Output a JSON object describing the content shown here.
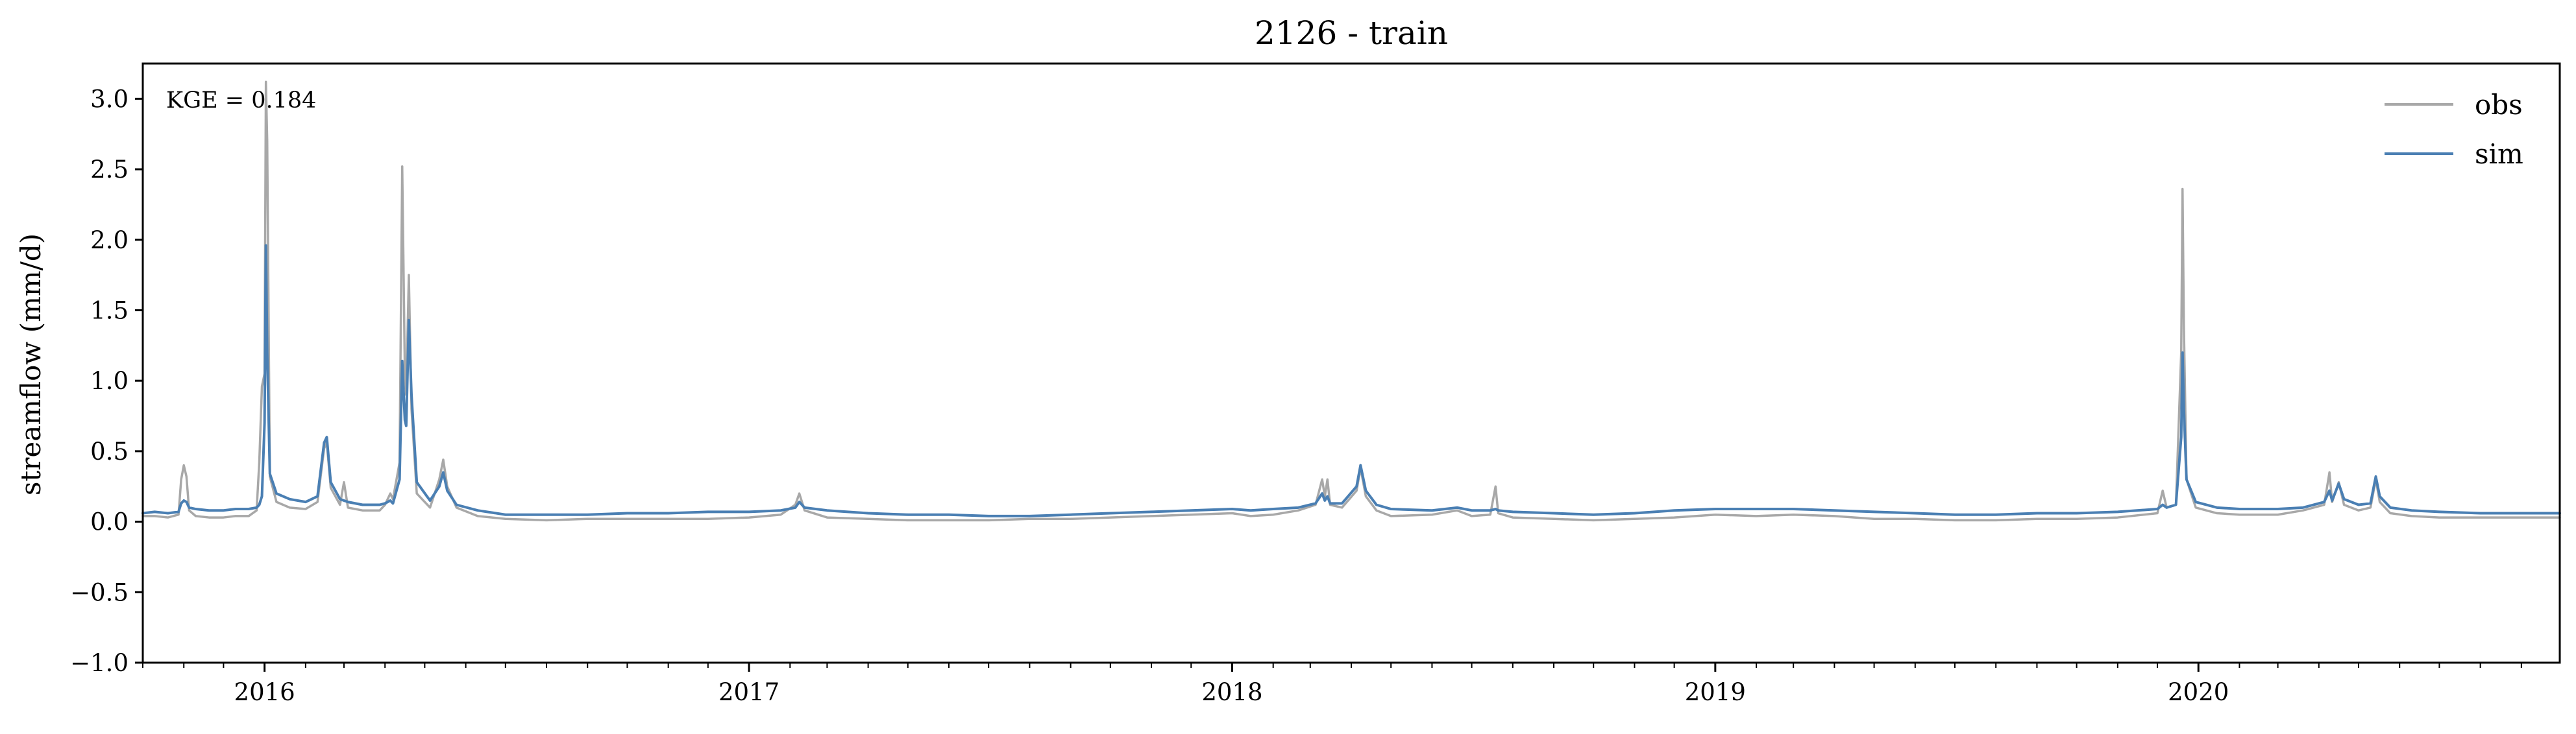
{
  "chart_data": {
    "type": "line",
    "title": "2126 - train",
    "xlabel": "",
    "ylabel": "streamflow (mm/d)",
    "annotation": "KGE = 0.184",
    "xlim": [
      "2015-10-01",
      "2020-09-30"
    ],
    "ylim": [
      -1.0,
      3.25
    ],
    "x_ticks": [
      "2016",
      "2017",
      "2018",
      "2019",
      "2020"
    ],
    "y_ticks": [
      "3.0",
      "2.5",
      "2.0",
      "1.5",
      "1.0",
      "0.5",
      "0.0",
      "−0.5",
      "−1.0"
    ],
    "legend_position": "top-right",
    "colors": {
      "obs": "#a8a8a8",
      "sim": "#4a7fb3"
    },
    "series": [
      {
        "name": "obs",
        "color": "#a8a8a8",
        "points": [
          [
            "2015-10-01",
            0.04
          ],
          [
            "2015-10-10",
            0.04
          ],
          [
            "2015-10-20",
            0.03
          ],
          [
            "2015-10-28",
            0.05
          ],
          [
            "2015-10-30",
            0.3
          ],
          [
            "2015-11-01",
            0.4
          ],
          [
            "2015-11-03",
            0.32
          ],
          [
            "2015-11-05",
            0.08
          ],
          [
            "2015-11-10",
            0.04
          ],
          [
            "2015-11-20",
            0.03
          ],
          [
            "2015-12-01",
            0.03
          ],
          [
            "2015-12-10",
            0.04
          ],
          [
            "2015-12-20",
            0.04
          ],
          [
            "2015-12-26",
            0.08
          ],
          [
            "2015-12-28",
            0.42
          ],
          [
            "2015-12-30",
            0.96
          ],
          [
            "2016-01-01",
            1.05
          ],
          [
            "2016-01-02",
            3.12
          ],
          [
            "2016-01-03",
            2.7
          ],
          [
            "2016-01-05",
            0.32
          ],
          [
            "2016-01-10",
            0.14
          ],
          [
            "2016-01-20",
            0.1
          ],
          [
            "2016-02-01",
            0.09
          ],
          [
            "2016-02-10",
            0.14
          ],
          [
            "2016-02-15",
            0.52
          ],
          [
            "2016-02-17",
            0.56
          ],
          [
            "2016-02-20",
            0.24
          ],
          [
            "2016-02-27",
            0.12
          ],
          [
            "2016-03-01",
            0.28
          ],
          [
            "2016-03-04",
            0.1
          ],
          [
            "2016-03-15",
            0.08
          ],
          [
            "2016-03-28",
            0.08
          ],
          [
            "2016-04-01",
            0.12
          ],
          [
            "2016-04-05",
            0.2
          ],
          [
            "2016-04-07",
            0.16
          ],
          [
            "2016-04-12",
            0.42
          ],
          [
            "2016-04-14",
            2.52
          ],
          [
            "2016-04-16",
            1.05
          ],
          [
            "2016-04-17",
            0.9
          ],
          [
            "2016-04-19",
            1.75
          ],
          [
            "2016-04-21",
            0.8
          ],
          [
            "2016-04-25",
            0.2
          ],
          [
            "2016-05-05",
            0.1
          ],
          [
            "2016-05-12",
            0.3
          ],
          [
            "2016-05-15",
            0.44
          ],
          [
            "2016-05-18",
            0.25
          ],
          [
            "2016-05-25",
            0.1
          ],
          [
            "2016-06-10",
            0.04
          ],
          [
            "2016-07-01",
            0.02
          ],
          [
            "2016-08-01",
            0.01
          ],
          [
            "2016-09-01",
            0.02
          ],
          [
            "2016-10-01",
            0.02
          ],
          [
            "2016-11-01",
            0.02
          ],
          [
            "2016-12-01",
            0.02
          ],
          [
            "2017-01-01",
            0.03
          ],
          [
            "2017-01-25",
            0.05
          ],
          [
            "2017-02-05",
            0.12
          ],
          [
            "2017-02-08",
            0.2
          ],
          [
            "2017-02-12",
            0.08
          ],
          [
            "2017-03-01",
            0.03
          ],
          [
            "2017-04-01",
            0.02
          ],
          [
            "2017-05-01",
            0.01
          ],
          [
            "2017-06-01",
            0.01
          ],
          [
            "2017-07-01",
            0.01
          ],
          [
            "2017-08-01",
            0.02
          ],
          [
            "2017-09-01",
            0.02
          ],
          [
            "2017-10-01",
            0.03
          ],
          [
            "2017-11-01",
            0.04
          ],
          [
            "2017-12-01",
            0.05
          ],
          [
            "2018-01-01",
            0.06
          ],
          [
            "2018-01-15",
            0.04
          ],
          [
            "2018-02-01",
            0.05
          ],
          [
            "2018-02-20",
            0.08
          ],
          [
            "2018-03-05",
            0.12
          ],
          [
            "2018-03-10",
            0.3
          ],
          [
            "2018-03-12",
            0.18
          ],
          [
            "2018-03-14",
            0.3
          ],
          [
            "2018-03-16",
            0.12
          ],
          [
            "2018-03-25",
            0.1
          ],
          [
            "2018-04-05",
            0.22
          ],
          [
            "2018-04-08",
            0.38
          ],
          [
            "2018-04-12",
            0.18
          ],
          [
            "2018-04-20",
            0.08
          ],
          [
            "2018-05-01",
            0.04
          ],
          [
            "2018-06-01",
            0.05
          ],
          [
            "2018-06-20",
            0.08
          ],
          [
            "2018-07-01",
            0.04
          ],
          [
            "2018-07-15",
            0.05
          ],
          [
            "2018-07-19",
            0.25
          ],
          [
            "2018-07-21",
            0.06
          ],
          [
            "2018-08-01",
            0.03
          ],
          [
            "2018-09-01",
            0.02
          ],
          [
            "2018-10-01",
            0.01
          ],
          [
            "2018-11-01",
            0.02
          ],
          [
            "2018-12-01",
            0.03
          ],
          [
            "2019-01-01",
            0.05
          ],
          [
            "2019-02-01",
            0.04
          ],
          [
            "2019-03-01",
            0.05
          ],
          [
            "2019-04-01",
            0.04
          ],
          [
            "2019-05-01",
            0.02
          ],
          [
            "2019-06-01",
            0.02
          ],
          [
            "2019-07-01",
            0.01
          ],
          [
            "2019-08-01",
            0.01
          ],
          [
            "2019-09-01",
            0.02
          ],
          [
            "2019-10-01",
            0.02
          ],
          [
            "2019-11-01",
            0.03
          ],
          [
            "2019-12-01",
            0.06
          ],
          [
            "2019-12-05",
            0.22
          ],
          [
            "2019-12-08",
            0.1
          ],
          [
            "2019-12-15",
            0.12
          ],
          [
            "2019-12-19",
            1.2
          ],
          [
            "2019-12-20",
            2.36
          ],
          [
            "2019-12-21",
            1.4
          ],
          [
            "2019-12-23",
            0.3
          ],
          [
            "2019-12-30",
            0.1
          ],
          [
            "2020-01-15",
            0.06
          ],
          [
            "2020-02-01",
            0.05
          ],
          [
            "2020-03-01",
            0.05
          ],
          [
            "2020-03-20",
            0.08
          ],
          [
            "2020-04-05",
            0.12
          ],
          [
            "2020-04-09",
            0.35
          ],
          [
            "2020-04-11",
            0.14
          ],
          [
            "2020-04-16",
            0.28
          ],
          [
            "2020-04-20",
            0.12
          ],
          [
            "2020-05-01",
            0.08
          ],
          [
            "2020-05-10",
            0.1
          ],
          [
            "2020-05-14",
            0.3
          ],
          [
            "2020-05-17",
            0.14
          ],
          [
            "2020-05-25",
            0.06
          ],
          [
            "2020-06-10",
            0.04
          ],
          [
            "2020-07-01",
            0.03
          ],
          [
            "2020-08-01",
            0.03
          ],
          [
            "2020-09-01",
            0.03
          ],
          [
            "2020-09-30",
            0.03
          ]
        ]
      },
      {
        "name": "sim",
        "color": "#4a7fb3",
        "points": [
          [
            "2015-10-01",
            0.06
          ],
          [
            "2015-10-10",
            0.07
          ],
          [
            "2015-10-20",
            0.06
          ],
          [
            "2015-10-28",
            0.07
          ],
          [
            "2015-10-30",
            0.13
          ],
          [
            "2015-11-01",
            0.15
          ],
          [
            "2015-11-03",
            0.14
          ],
          [
            "2015-11-05",
            0.1
          ],
          [
            "2015-11-10",
            0.09
          ],
          [
            "2015-11-20",
            0.08
          ],
          [
            "2015-12-01",
            0.08
          ],
          [
            "2015-12-10",
            0.09
          ],
          [
            "2015-12-20",
            0.09
          ],
          [
            "2015-12-26",
            0.1
          ],
          [
            "2015-12-28",
            0.12
          ],
          [
            "2015-12-30",
            0.18
          ],
          [
            "2016-01-01",
            0.7
          ],
          [
            "2016-01-02",
            1.96
          ],
          [
            "2016-01-03",
            1.2
          ],
          [
            "2016-01-05",
            0.34
          ],
          [
            "2016-01-10",
            0.2
          ],
          [
            "2016-01-20",
            0.16
          ],
          [
            "2016-02-01",
            0.14
          ],
          [
            "2016-02-10",
            0.18
          ],
          [
            "2016-02-15",
            0.56
          ],
          [
            "2016-02-17",
            0.6
          ],
          [
            "2016-02-20",
            0.28
          ],
          [
            "2016-02-27",
            0.16
          ],
          [
            "2016-03-01",
            0.15
          ],
          [
            "2016-03-04",
            0.14
          ],
          [
            "2016-03-15",
            0.12
          ],
          [
            "2016-03-28",
            0.12
          ],
          [
            "2016-04-01",
            0.13
          ],
          [
            "2016-04-05",
            0.15
          ],
          [
            "2016-04-07",
            0.13
          ],
          [
            "2016-04-12",
            0.3
          ],
          [
            "2016-04-14",
            1.14
          ],
          [
            "2016-04-16",
            0.72
          ],
          [
            "2016-04-17",
            0.68
          ],
          [
            "2016-04-19",
            1.43
          ],
          [
            "2016-04-21",
            0.9
          ],
          [
            "2016-04-25",
            0.28
          ],
          [
            "2016-05-05",
            0.15
          ],
          [
            "2016-05-12",
            0.25
          ],
          [
            "2016-05-15",
            0.35
          ],
          [
            "2016-05-18",
            0.22
          ],
          [
            "2016-05-25",
            0.12
          ],
          [
            "2016-06-10",
            0.08
          ],
          [
            "2016-07-01",
            0.05
          ],
          [
            "2016-08-01",
            0.05
          ],
          [
            "2016-09-01",
            0.05
          ],
          [
            "2016-10-01",
            0.06
          ],
          [
            "2016-11-01",
            0.06
          ],
          [
            "2016-12-01",
            0.07
          ],
          [
            "2017-01-01",
            0.07
          ],
          [
            "2017-01-25",
            0.08
          ],
          [
            "2017-02-05",
            0.1
          ],
          [
            "2017-02-08",
            0.14
          ],
          [
            "2017-02-12",
            0.1
          ],
          [
            "2017-03-01",
            0.08
          ],
          [
            "2017-04-01",
            0.06
          ],
          [
            "2017-05-01",
            0.05
          ],
          [
            "2017-06-01",
            0.05
          ],
          [
            "2017-07-01",
            0.04
          ],
          [
            "2017-08-01",
            0.04
          ],
          [
            "2017-09-01",
            0.05
          ],
          [
            "2017-10-01",
            0.06
          ],
          [
            "2017-11-01",
            0.07
          ],
          [
            "2017-12-01",
            0.08
          ],
          [
            "2018-01-01",
            0.09
          ],
          [
            "2018-01-15",
            0.08
          ],
          [
            "2018-02-01",
            0.09
          ],
          [
            "2018-02-20",
            0.1
          ],
          [
            "2018-03-05",
            0.13
          ],
          [
            "2018-03-10",
            0.2
          ],
          [
            "2018-03-12",
            0.15
          ],
          [
            "2018-03-14",
            0.18
          ],
          [
            "2018-03-16",
            0.13
          ],
          [
            "2018-03-25",
            0.13
          ],
          [
            "2018-04-05",
            0.25
          ],
          [
            "2018-04-08",
            0.4
          ],
          [
            "2018-04-12",
            0.22
          ],
          [
            "2018-04-20",
            0.12
          ],
          [
            "2018-05-01",
            0.09
          ],
          [
            "2018-06-01",
            0.08
          ],
          [
            "2018-06-20",
            0.1
          ],
          [
            "2018-07-01",
            0.08
          ],
          [
            "2018-07-15",
            0.08
          ],
          [
            "2018-07-19",
            0.09
          ],
          [
            "2018-07-21",
            0.08
          ],
          [
            "2018-08-01",
            0.07
          ],
          [
            "2018-09-01",
            0.06
          ],
          [
            "2018-10-01",
            0.05
          ],
          [
            "2018-11-01",
            0.06
          ],
          [
            "2018-12-01",
            0.08
          ],
          [
            "2019-01-01",
            0.09
          ],
          [
            "2019-02-01",
            0.09
          ],
          [
            "2019-03-01",
            0.09
          ],
          [
            "2019-04-01",
            0.08
          ],
          [
            "2019-05-01",
            0.07
          ],
          [
            "2019-06-01",
            0.06
          ],
          [
            "2019-07-01",
            0.05
          ],
          [
            "2019-08-01",
            0.05
          ],
          [
            "2019-09-01",
            0.06
          ],
          [
            "2019-10-01",
            0.06
          ],
          [
            "2019-11-01",
            0.07
          ],
          [
            "2019-12-01",
            0.09
          ],
          [
            "2019-12-05",
            0.12
          ],
          [
            "2019-12-08",
            0.1
          ],
          [
            "2019-12-15",
            0.12
          ],
          [
            "2019-12-19",
            0.6
          ],
          [
            "2019-12-20",
            1.2
          ],
          [
            "2019-12-21",
            0.8
          ],
          [
            "2019-12-23",
            0.3
          ],
          [
            "2019-12-30",
            0.14
          ],
          [
            "2020-01-15",
            0.1
          ],
          [
            "2020-02-01",
            0.09
          ],
          [
            "2020-03-01",
            0.09
          ],
          [
            "2020-03-20",
            0.1
          ],
          [
            "2020-04-05",
            0.14
          ],
          [
            "2020-04-09",
            0.22
          ],
          [
            "2020-04-11",
            0.15
          ],
          [
            "2020-04-16",
            0.27
          ],
          [
            "2020-04-20",
            0.16
          ],
          [
            "2020-05-01",
            0.12
          ],
          [
            "2020-05-10",
            0.13
          ],
          [
            "2020-05-14",
            0.32
          ],
          [
            "2020-05-17",
            0.18
          ],
          [
            "2020-05-25",
            0.1
          ],
          [
            "2020-06-10",
            0.08
          ],
          [
            "2020-07-01",
            0.07
          ],
          [
            "2020-08-01",
            0.06
          ],
          [
            "2020-09-01",
            0.06
          ],
          [
            "2020-09-30",
            0.06
          ]
        ]
      }
    ]
  }
}
